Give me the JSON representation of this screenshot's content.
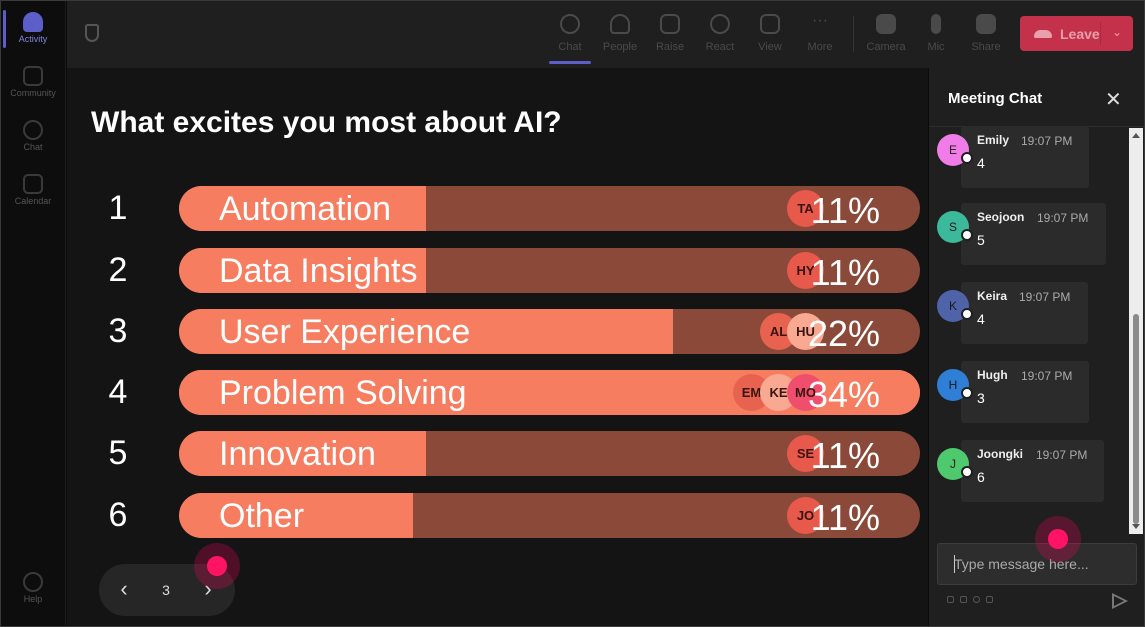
{
  "rail": {
    "items": [
      {
        "label": "Activity",
        "icon": "bell-icon",
        "active": true
      },
      {
        "label": "Community",
        "icon": "community-icon",
        "active": false
      },
      {
        "label": "Chat",
        "icon": "chat-icon",
        "active": false
      },
      {
        "label": "Calendar",
        "icon": "calendar-icon",
        "active": false
      }
    ],
    "help_label": "Help"
  },
  "toolbar": {
    "buttons": [
      {
        "label": "Chat",
        "icon": "chat-bubble-icon"
      },
      {
        "label": "People",
        "icon": "people-icon"
      },
      {
        "label": "Raise",
        "icon": "hand-icon"
      },
      {
        "label": "React",
        "icon": "smiley-icon"
      },
      {
        "label": "View",
        "icon": "grid-icon"
      },
      {
        "label": "More",
        "icon": "ellipsis-icon"
      },
      {
        "label": "Camera",
        "icon": "camera-icon"
      },
      {
        "label": "Mic",
        "icon": "mic-icon"
      },
      {
        "label": "Share",
        "icon": "share-icon"
      }
    ],
    "leave_label": "Leave",
    "leave_color": "#c4314b"
  },
  "poll": {
    "question": "What excites you most about AI?",
    "options": [
      {
        "rank": "1",
        "label": "Automation",
        "percent": "11%",
        "avatars": [
          "TA"
        ]
      },
      {
        "rank": "2",
        "label": "Data Insights",
        "percent": "11%",
        "avatars": [
          "HY"
        ]
      },
      {
        "rank": "3",
        "label": "User Experience",
        "percent": "22%",
        "avatars": [
          "AL",
          "HU"
        ]
      },
      {
        "rank": "4",
        "label": "Problem Solving",
        "percent": "34%",
        "avatars": [
          "EM",
          "KE",
          "MO"
        ]
      },
      {
        "rank": "5",
        "label": "Innovation",
        "percent": "11%",
        "avatars": [
          "SE"
        ]
      },
      {
        "rank": "6",
        "label": "Other",
        "percent": "11%",
        "avatars": [
          "JO"
        ]
      }
    ],
    "bar_color": "#f77d61",
    "track_color": "#8b4a39"
  },
  "pager": {
    "page": "3"
  },
  "chat": {
    "title": "Meeting Chat",
    "messages": [
      {
        "initial": "E",
        "name": "Emily",
        "time": "19:07 PM",
        "text": "4",
        "color": "#f07ce8"
      },
      {
        "initial": "S",
        "name": "Seojoon",
        "time": "19:07 PM",
        "text": "5",
        "color": "#3cb89a"
      },
      {
        "initial": "K",
        "name": "Keira",
        "time": "19:07 PM",
        "text": "4",
        "color": "#4f63a8"
      },
      {
        "initial": "H",
        "name": "Hugh",
        "time": "19:07 PM",
        "text": "3",
        "color": "#2f7fd6"
      },
      {
        "initial": "J",
        "name": "Joongki",
        "time": "19:07 PM",
        "text": "6",
        "color": "#4ec96e"
      }
    ],
    "input_placeholder": "Type message here..."
  }
}
